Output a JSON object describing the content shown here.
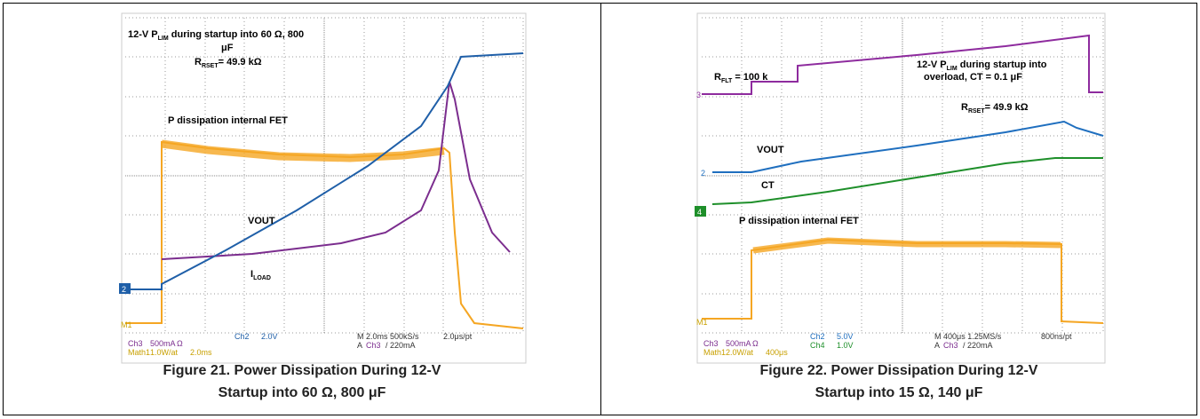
{
  "figures": [
    {
      "annotations": {
        "title_pre": "12-V P",
        "title_sub": "LIM",
        "title_post": " during startup into 60 Ω, 800",
        "title_line2": "μF",
        "rset_pre": "R",
        "rset_sub": "RSET",
        "rset_post": "= 49.9 kΩ",
        "pdiss": "P dissipation internal FET",
        "vout": "VOUT",
        "iload_pre": "I",
        "iload_sub": "LOAD"
      },
      "markers": [
        "2",
        "M1"
      ],
      "readout": [
        "Ch3",
        "500mA",
        "Ω",
        "Math1",
        "1.0W/at",
        "2.0ms",
        "Ch2",
        "2.0V",
        "M 2.0ms 500kS/s",
        "A",
        "Ch3",
        "/ 220mA",
        "2.0μs/pt"
      ],
      "caption": [
        "Figure 21. Power Dissipation During 12-V",
        "Startup into 60 Ω, 800 μF"
      ]
    },
    {
      "annotations": {
        "rflt_pre": "R",
        "rflt_sub": "FLT",
        "rflt_post": " = 100 k",
        "title_pre": "12-V P",
        "title_sub": "LIM",
        "title_post": " during startup into",
        "title_line2": "overload, CT = 0.1 μF",
        "rset_pre": "R",
        "rset_sub": "RSET",
        "rset_post": "= 49.9 kΩ",
        "vout": "VOUT",
        "ct": "CT",
        "pdiss": "P dissipation internal FET"
      },
      "markers": [
        "3",
        "2",
        "4",
        "M1"
      ],
      "readout": [
        "Ch3",
        "500mA",
        "Ω",
        "Math1",
        "2.0W/at",
        "400μs",
        "Ch2",
        "5.0V",
        "Ch4",
        "1.0V",
        "M 400μs 1.25MS/s",
        "800ns/pt",
        "A",
        "Ch3",
        "/ 220mA"
      ],
      "caption": [
        "Figure 22. Power Dissipation During 12-V",
        "Startup into 15 Ω, 140 μF"
      ]
    }
  ]
}
